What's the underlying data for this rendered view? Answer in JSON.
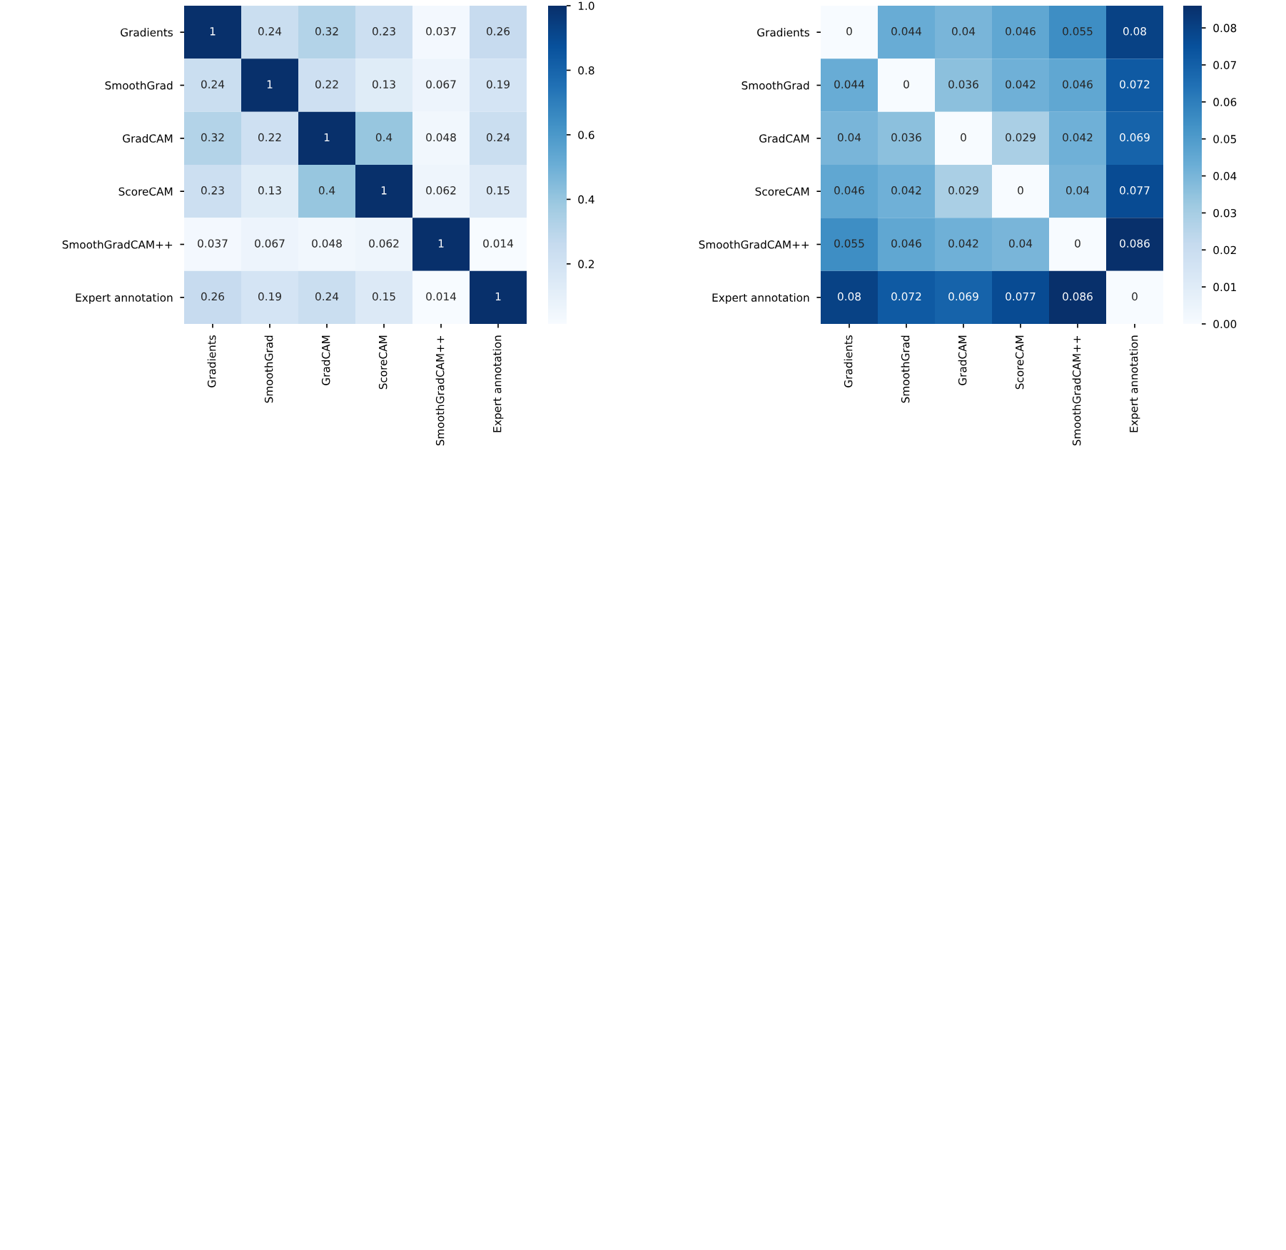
{
  "chart_data": [
    {
      "type": "heatmap",
      "categories": [
        "Gradients",
        "SmoothGrad",
        "GradCAM",
        "ScoreCAM",
        "SmoothGradCAM++",
        "Expert annotation"
      ],
      "y_categories": [
        "Gradients",
        "SmoothGrad",
        "GradCAM",
        "ScoreCAM",
        "SmoothGradCAM++",
        "Expert annotation"
      ],
      "cells": [
        [
          1,
          0.24,
          0.32,
          0.23,
          0.037,
          0.26
        ],
        [
          0.24,
          1,
          0.22,
          0.13,
          0.067,
          0.19
        ],
        [
          0.32,
          0.22,
          1,
          0.4,
          0.048,
          0.24
        ],
        [
          0.23,
          0.13,
          0.4,
          1,
          0.062,
          0.15
        ],
        [
          0.037,
          0.067,
          0.048,
          0.062,
          1,
          0.014
        ],
        [
          0.26,
          0.19,
          0.24,
          0.15,
          0.014,
          1
        ]
      ],
      "clim": [
        0.014,
        1
      ],
      "cticks": [
        {
          "value": 0.2,
          "label": "0.2"
        },
        {
          "value": 0.4,
          "label": "0.4"
        },
        {
          "value": 0.6,
          "label": "0.6"
        },
        {
          "value": 0.8,
          "label": "0.8"
        },
        {
          "value": 1.0,
          "label": "1.0"
        }
      ],
      "data_labels": true
    },
    {
      "type": "heatmap",
      "categories": [
        "Gradients",
        "SmoothGrad",
        "GradCAM",
        "ScoreCAM",
        "SmoothGradCAM++",
        "Expert annotation"
      ],
      "y_categories": [
        "Gradients",
        "SmoothGrad",
        "GradCAM",
        "ScoreCAM",
        "SmoothGradCAM++",
        "Expert annotation"
      ],
      "cells": [
        [
          0,
          0.044,
          0.04,
          0.046,
          0.055,
          0.08
        ],
        [
          0.044,
          0,
          0.036,
          0.042,
          0.046,
          0.072
        ],
        [
          0.04,
          0.036,
          0,
          0.029,
          0.042,
          0.069
        ],
        [
          0.046,
          0.042,
          0.029,
          0,
          0.04,
          0.077
        ],
        [
          0.055,
          0.046,
          0.042,
          0.04,
          0,
          0.086
        ],
        [
          0.08,
          0.072,
          0.069,
          0.077,
          0.086,
          0
        ]
      ],
      "clim": [
        0,
        0.086
      ],
      "cticks": [
        {
          "value": 0.0,
          "label": "0.00"
        },
        {
          "value": 0.01,
          "label": "0.01"
        },
        {
          "value": 0.02,
          "label": "0.02"
        },
        {
          "value": 0.03,
          "label": "0.03"
        },
        {
          "value": 0.04,
          "label": "0.04"
        },
        {
          "value": 0.05,
          "label": "0.05"
        },
        {
          "value": 0.06,
          "label": "0.06"
        },
        {
          "value": 0.07,
          "label": "0.07"
        },
        {
          "value": 0.08,
          "label": "0.08"
        }
      ],
      "data_labels": true
    }
  ]
}
